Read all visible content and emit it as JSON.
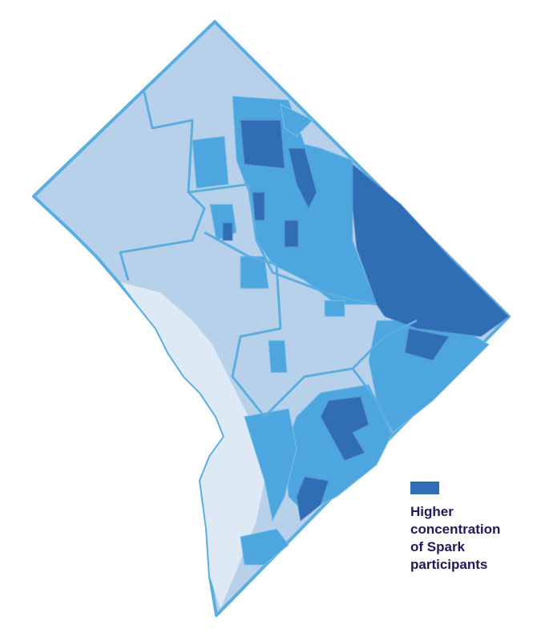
{
  "legend": {
    "label_lines": [
      "Higher",
      "concentration",
      "of Spark",
      "participants"
    ],
    "color": "#2f6db5"
  }
}
